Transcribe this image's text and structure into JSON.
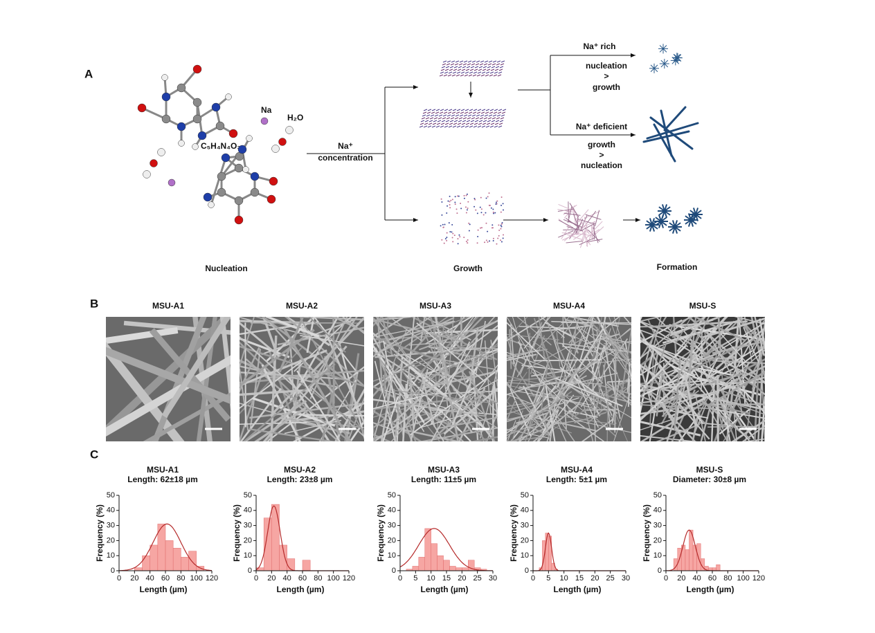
{
  "panel_a": {
    "label": "A",
    "molecule_formula": "C₅H₄N₄O₃",
    "sodium": "Na",
    "water": "H₂O",
    "na_concentration": [
      "Na⁺",
      "concentration"
    ],
    "na_rich": {
      "title": "Na⁺ rich",
      "rule": [
        "nucleation",
        ">",
        "growth"
      ]
    },
    "na_deficient": {
      "title": "Na⁺ deficient",
      "rule": [
        "growth",
        ">",
        "nucleation"
      ]
    },
    "stages": [
      "Nucleation",
      "Growth",
      "Formation"
    ]
  },
  "panel_b": {
    "label": "B",
    "samples": [
      "MSU-A1",
      "MSU-A2",
      "MSU-A3",
      "MSU-A4",
      "MSU-S"
    ]
  },
  "panel_c": {
    "label": "C"
  },
  "chart_data": [
    {
      "type": "histogram",
      "title": "MSU-A1",
      "subtitle": "Length: 62±18 µm",
      "x_label": "Length (µm)",
      "y_label": "Frequency (%)",
      "bins": [
        20,
        30,
        40,
        50,
        60,
        70,
        80,
        90,
        100,
        110
      ],
      "values": [
        2,
        10,
        17,
        31,
        20,
        15,
        9,
        13,
        3
      ],
      "fit": {
        "mean": 62,
        "sd": 18,
        "peak": 31
      },
      "color": "#f4908c",
      "fit_color": "#b52a2a",
      "xlim": [
        0,
        120
      ],
      "xticks": [
        0,
        20,
        40,
        60,
        80,
        100,
        120
      ],
      "ylim": [
        0,
        50
      ],
      "yticks": [
        0,
        10,
        20,
        30,
        40,
        50
      ]
    },
    {
      "type": "histogram",
      "title": "MSU-A2",
      "subtitle": "Length: 23±8 µm",
      "x_label": "Length (µm)",
      "y_label": "Frequency (%)",
      "bins": [
        0,
        10,
        20,
        30,
        40,
        50,
        60,
        70
      ],
      "values": [
        2,
        35,
        44,
        17,
        8,
        0,
        7
      ],
      "fit": {
        "mean": 23,
        "sd": 8,
        "peak": 43
      },
      "color": "#f4908c",
      "fit_color": "#b52a2a",
      "xlim": [
        0,
        120
      ],
      "xticks": [
        0,
        20,
        40,
        60,
        80,
        100,
        120
      ],
      "ylim": [
        0,
        50
      ],
      "yticks": [
        0,
        10,
        20,
        30,
        40,
        50
      ]
    },
    {
      "type": "histogram",
      "title": "MSU-A3",
      "subtitle": "Length: 11±5 µm",
      "x_label": "Length (µm)",
      "y_label": "Frequency (%)",
      "bins": [
        2,
        4,
        6,
        8,
        10,
        12,
        14,
        16,
        18,
        20,
        22,
        24,
        26,
        28
      ],
      "values": [
        1,
        3,
        9,
        28,
        18,
        10,
        7,
        3,
        2,
        2,
        7,
        2,
        1
      ],
      "fit": {
        "mean": 11,
        "sd": 5,
        "peak": 28
      },
      "color": "#f4908c",
      "fit_color": "#b52a2a",
      "xlim": [
        0,
        30
      ],
      "xticks": [
        0,
        5,
        10,
        15,
        20,
        25,
        30
      ],
      "ylim": [
        0,
        50
      ],
      "yticks": [
        0,
        10,
        20,
        30,
        40,
        50
      ]
    },
    {
      "type": "histogram",
      "title": "MSU-A4",
      "subtitle": "Length: 5±1 µm",
      "x_label": "Length (µm)",
      "y_label": "Frequency (%)",
      "bins": [
        2,
        3,
        4,
        5,
        6,
        7,
        8
      ],
      "values": [
        2,
        20,
        25,
        23,
        5,
        1
      ],
      "fit": {
        "mean": 5,
        "sd": 1,
        "peak": 25
      },
      "color": "#f4908c",
      "fit_color": "#b52a2a",
      "xlim": [
        0,
        30
      ],
      "xticks": [
        0,
        5,
        10,
        15,
        20,
        25,
        30
      ],
      "ylim": [
        0,
        50
      ],
      "yticks": [
        0,
        10,
        20,
        30,
        40,
        50
      ]
    },
    {
      "type": "histogram",
      "title": "MSU-S",
      "subtitle": "Diameter: 30±8 µm",
      "x_label": "Length (µm)",
      "y_label": "Frequency (%)",
      "bins": [
        10,
        15,
        20,
        25,
        30,
        35,
        40,
        45,
        50,
        55,
        60,
        65,
        70
      ],
      "values": [
        8,
        15,
        17,
        14,
        27,
        17,
        18,
        8,
        3,
        2,
        2,
        4
      ],
      "fit": {
        "mean": 30,
        "sd": 8,
        "peak": 27
      },
      "color": "#f4908c",
      "fit_color": "#b52a2a",
      "xlim": [
        0,
        120
      ],
      "xticks": [
        0,
        20,
        40,
        60,
        80,
        100,
        120
      ],
      "ylim": [
        0,
        50
      ],
      "yticks": [
        0,
        10,
        20,
        30,
        40,
        50
      ]
    }
  ]
}
